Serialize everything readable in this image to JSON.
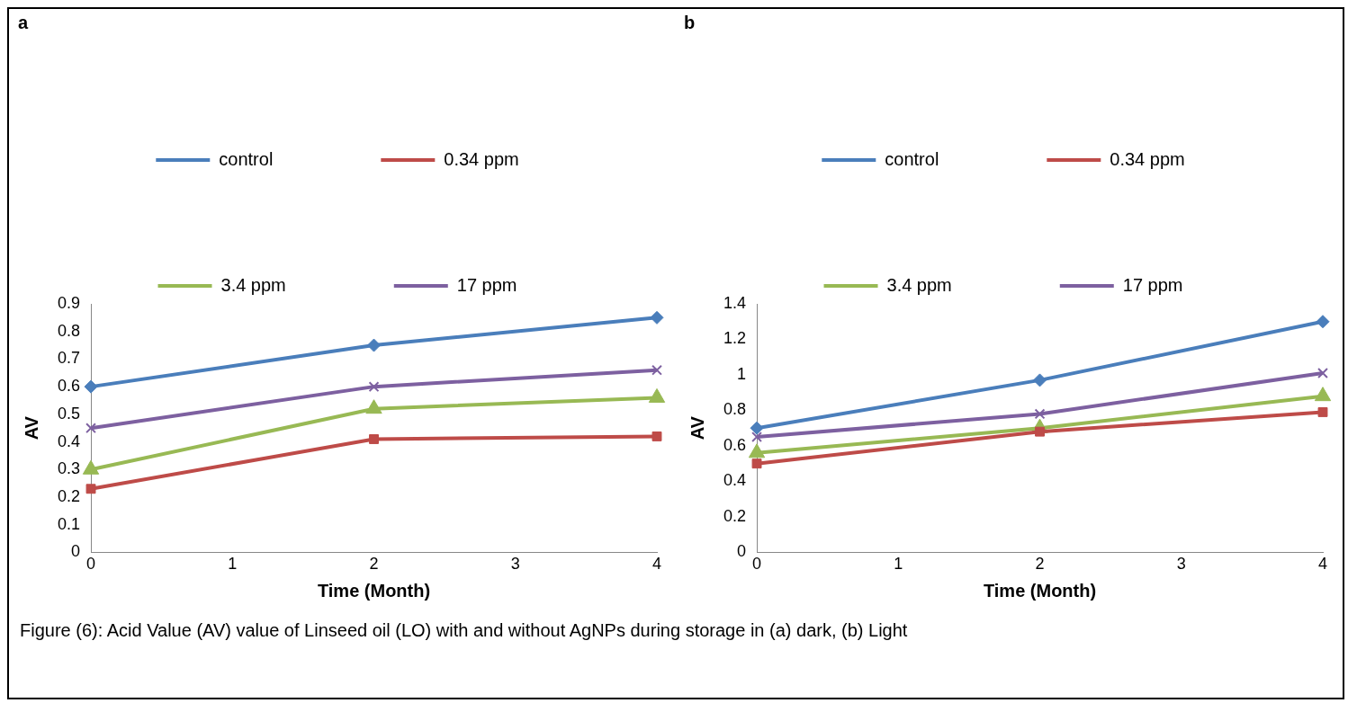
{
  "chart_data": [
    {
      "type": "line",
      "title": "a",
      "xlabel": "Time (Month)",
      "ylabel": "AV",
      "xlim": [
        0,
        4
      ],
      "xticks": [
        0,
        1,
        2,
        3,
        4
      ],
      "ylim": [
        0,
        0.9
      ],
      "yticks": [
        0,
        0.1,
        0.2,
        0.3,
        0.4,
        0.5,
        0.6,
        0.7,
        0.8,
        0.9
      ],
      "grid": false,
      "legend": "top",
      "x": [
        0,
        2,
        4
      ],
      "series": [
        {
          "name": "control",
          "color": "#4a7ebb",
          "marker": "diamond",
          "values": [
            0.6,
            0.75,
            0.85
          ]
        },
        {
          "name": "0.34 ppm",
          "color": "#be4b48",
          "marker": "square",
          "values": [
            0.23,
            0.41,
            0.42
          ]
        },
        {
          "name": "3.4 ppm",
          "color": "#98b954",
          "marker": "triangle",
          "values": [
            0.3,
            0.52,
            0.56
          ]
        },
        {
          "name": "17 ppm",
          "color": "#7d60a0",
          "marker": "cross",
          "values": [
            0.45,
            0.6,
            0.66
          ]
        }
      ]
    },
    {
      "type": "line",
      "title": "b",
      "xlabel": "Time (Month)",
      "ylabel": "AV",
      "xlim": [
        0,
        4
      ],
      "xticks": [
        0,
        1,
        2,
        3,
        4
      ],
      "ylim": [
        0,
        1.4
      ],
      "yticks": [
        0,
        0.2,
        0.4,
        0.6,
        0.8,
        1,
        1.2,
        1.4
      ],
      "grid": false,
      "legend": "top",
      "x": [
        0,
        2,
        4
      ],
      "annotations": [
        "Figure (6): Acid Value (AV) value of Linseed oil (LO) with and without AgNPs during storage in (a) dark, (b) Light"
      ],
      "series": [
        {
          "name": "control",
          "color": "#4a7ebb",
          "marker": "diamond",
          "values": [
            0.7,
            0.97,
            1.3
          ]
        },
        {
          "name": "0.34 ppm",
          "color": "#be4b48",
          "marker": "square",
          "values": [
            0.5,
            0.68,
            0.79
          ]
        },
        {
          "name": "3.4 ppm",
          "color": "#98b954",
          "marker": "triangle",
          "values": [
            0.56,
            0.7,
            0.88
          ]
        },
        {
          "name": "17 ppm",
          "color": "#7d60a0",
          "marker": "cross",
          "values": [
            0.65,
            0.78,
            1.01
          ]
        }
      ]
    }
  ]
}
